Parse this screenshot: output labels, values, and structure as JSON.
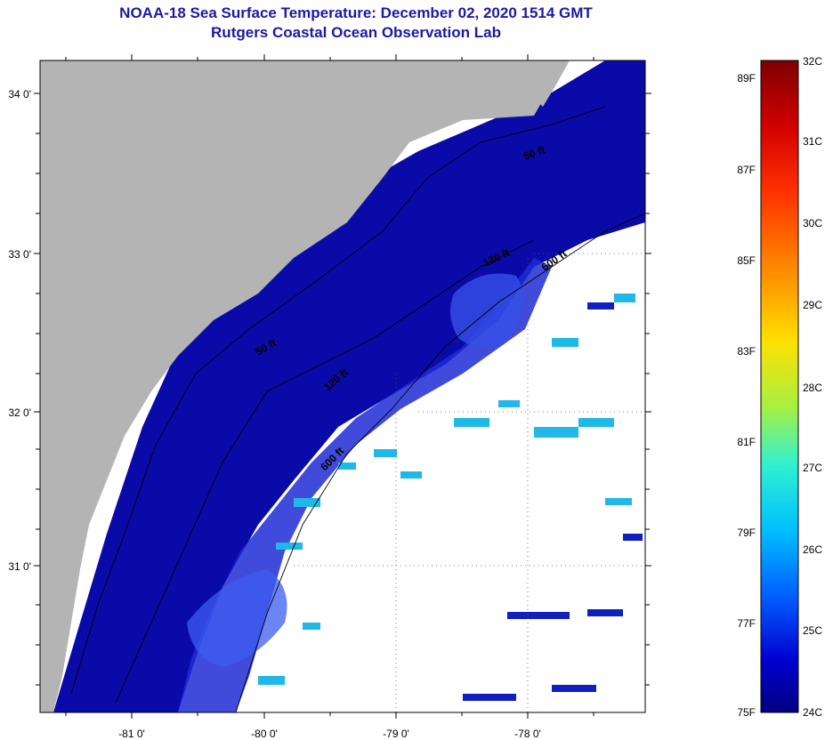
{
  "header": {
    "title": "NOAA-18 Sea Surface Temperature:  December 02, 2020 1514 GMT",
    "subtitle": "Rutgers Coastal Ocean Observation Lab"
  },
  "map": {
    "lat_labels": [
      "34 0'",
      "33 0'",
      "32 0'",
      "31 0'"
    ],
    "lon_labels": [
      "-81 0'",
      "-80 0'",
      "-79 0'",
      "-78 0'"
    ],
    "contour_labels": [
      "50 ft",
      "120 ft",
      "600 ft",
      "50 ft",
      "120 ft",
      "600 ft"
    ],
    "colors": {
      "land": "#b4b4b4",
      "cold_water": "#0a0aa8",
      "shelf_water": "#1a24c8",
      "cloud": "#ffffff",
      "warm_patch": "#20b8e6"
    }
  },
  "colorbar": {
    "fahrenheit_labels": [
      "89F",
      "87F",
      "85F",
      "83F",
      "81F",
      "79F",
      "77F",
      "75F"
    ],
    "celsius_labels": [
      "32C",
      "31C",
      "30C",
      "29C",
      "28C",
      "27C",
      "26C",
      "25C",
      "24C"
    ],
    "gradient_stops": [
      "#7f0000",
      "#ff0000",
      "#ff8c00",
      "#ffe000",
      "#a8f040",
      "#30f0d0",
      "#00c8ff",
      "#0060ff",
      "#0000c8",
      "#00007f"
    ]
  }
}
